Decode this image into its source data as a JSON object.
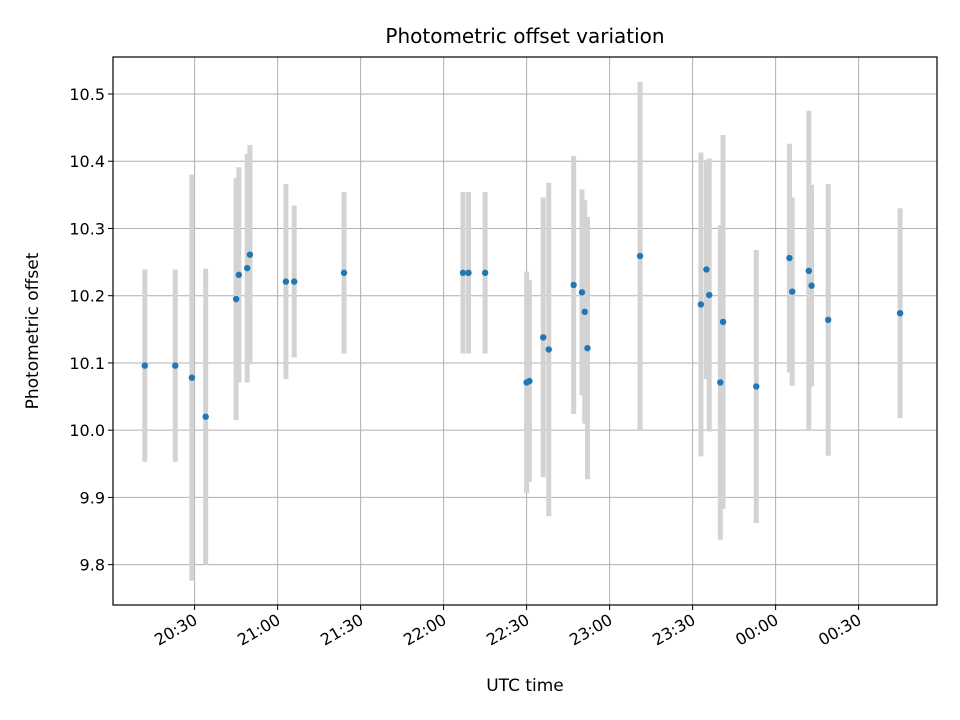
{
  "chart_data": {
    "type": "scatter",
    "title": "Photometric offset variation",
    "xlabel": "UTC time",
    "ylabel": "Photometric offset",
    "x_tick_labels": [
      "20:30",
      "21:00",
      "21:30",
      "22:00",
      "22:30",
      "23:00",
      "23:30",
      "00:00",
      "00:30"
    ],
    "y_ticks": [
      "9.8",
      "9.9",
      "10.0",
      "10.1",
      "10.2",
      "10.3",
      "10.4",
      "10.5"
    ],
    "ylim": [
      9.74,
      10.555
    ],
    "xlim": [
      "20:00",
      "02:00"
    ],
    "grid": true,
    "marker_color": "#1f77b4",
    "errorbar_color": "#d3d3d3",
    "points": [
      {
        "t": "20:12",
        "y": 10.096,
        "err": 0.143
      },
      {
        "t": "20:23",
        "y": 10.096,
        "err": 0.143
      },
      {
        "t": "20:29",
        "y": 10.078,
        "err": 0.302
      },
      {
        "t": "20:34",
        "y": 10.02,
        "err": 0.22
      },
      {
        "t": "20:45",
        "y": 10.195,
        "err": 0.18
      },
      {
        "t": "20:46",
        "y": 10.231,
        "err": 0.16
      },
      {
        "t": "20:49",
        "y": 10.241,
        "err": 0.17
      },
      {
        "t": "20:50",
        "y": 10.261,
        "err": 0.163
      },
      {
        "t": "21:03",
        "y": 10.221,
        "err": 0.145
      },
      {
        "t": "21:06",
        "y": 10.221,
        "err": 0.113
      },
      {
        "t": "21:24",
        "y": 10.234,
        "err": 0.12
      },
      {
        "t": "22:07",
        "y": 10.234,
        "err": 0.12
      },
      {
        "t": "22:09",
        "y": 10.234,
        "err": 0.12
      },
      {
        "t": "22:15",
        "y": 10.234,
        "err": 0.12
      },
      {
        "t": "22:30",
        "y": 10.071,
        "err": 0.165
      },
      {
        "t": "22:31",
        "y": 10.073,
        "err": 0.15
      },
      {
        "t": "22:36",
        "y": 10.138,
        "err": 0.208
      },
      {
        "t": "22:38",
        "y": 10.12,
        "err": 0.248
      },
      {
        "t": "22:47",
        "y": 10.216,
        "err": 0.192
      },
      {
        "t": "22:50",
        "y": 10.205,
        "err": 0.153
      },
      {
        "t": "22:51",
        "y": 10.176,
        "err": 0.166
      },
      {
        "t": "22:52",
        "y": 10.122,
        "err": 0.195
      },
      {
        "t": "23:11",
        "y": 10.259,
        "err": 0.259
      },
      {
        "t": "23:33",
        "y": 10.187,
        "err": 0.226
      },
      {
        "t": "23:35",
        "y": 10.239,
        "err": 0.163
      },
      {
        "t": "23:36",
        "y": 10.201,
        "err": 0.203
      },
      {
        "t": "23:40",
        "y": 10.071,
        "err": 0.234
      },
      {
        "t": "23:41",
        "y": 10.161,
        "err": 0.278
      },
      {
        "t": "23:53",
        "y": 10.065,
        "err": 0.203
      },
      {
        "t": "00:05",
        "y": 10.256,
        "err": 0.17
      },
      {
        "t": "00:06",
        "y": 10.206,
        "err": 0.14
      },
      {
        "t": "00:12",
        "y": 10.237,
        "err": 0.238
      },
      {
        "t": "00:13",
        "y": 10.215,
        "err": 0.15
      },
      {
        "t": "00:19",
        "y": 10.164,
        "err": 0.202
      },
      {
        "t": "00:45",
        "y": 10.174,
        "err": 0.156
      }
    ]
  }
}
